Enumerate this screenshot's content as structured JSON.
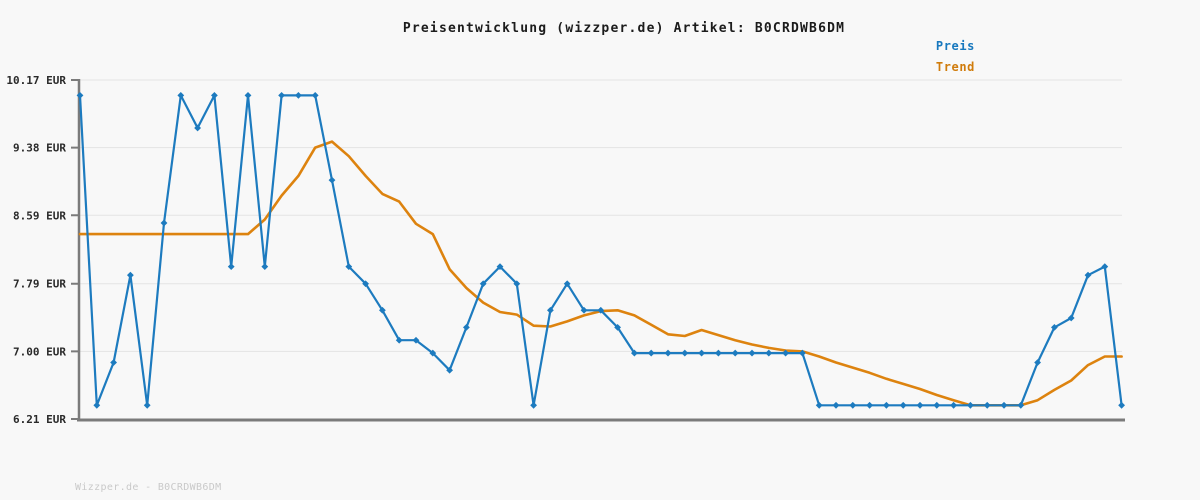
{
  "title": "Preisentwicklung (wizzper.de) Artikel: B0CRDWB6DM",
  "article_id": "B0CRDWB6DM",
  "legend": {
    "preis": {
      "label": "Preis",
      "color": "#1d7bbf"
    },
    "trend": {
      "label": "Trend",
      "color": "#dd830f"
    }
  },
  "footer": {
    "watermark": "Wizzper.de - B0CRDWB6DM"
  },
  "chart_data": {
    "type": "line",
    "title": "Preisentwicklung (wizzper.de) Artikel: B0CRDWB6DM",
    "currency": "EUR",
    "xlabel": "",
    "ylabel": "EUR",
    "x_labels_visible": false,
    "x_count": 63,
    "ylim": [
      6.21,
      10.17
    ],
    "grid": "horizontal",
    "legend_position": "top-right",
    "y_ticks": [
      {
        "value": 10.17,
        "label": "10.17 EUR"
      },
      {
        "value": 9.38,
        "label": "9.38 EUR"
      },
      {
        "value": 8.59,
        "label": "8.59 EUR"
      },
      {
        "value": 7.79,
        "label": "7.79 EUR"
      },
      {
        "value": 7.0,
        "label": "7.00 EUR"
      },
      {
        "value": 6.21,
        "label": "6.21 EUR"
      }
    ],
    "series": [
      {
        "name": "Preis",
        "color": "#1d7bbf",
        "marker": "diamond",
        "line_width": 2.2,
        "values": [
          9.99,
          6.37,
          6.87,
          7.89,
          6.37,
          8.5,
          9.99,
          9.61,
          9.99,
          7.99,
          9.99,
          7.99,
          9.99,
          9.99,
          9.99,
          9.0,
          7.99,
          7.79,
          7.48,
          7.13,
          7.13,
          6.98,
          6.78,
          7.28,
          7.79,
          7.99,
          7.79,
          6.37,
          7.48,
          7.79,
          7.48,
          7.48,
          7.28,
          6.98,
          6.98,
          6.98,
          6.98,
          6.98,
          6.98,
          6.98,
          6.98,
          6.98,
          6.98,
          6.98,
          6.37,
          6.37,
          6.37,
          6.37,
          6.37,
          6.37,
          6.37,
          6.37,
          6.37,
          6.37,
          6.37,
          6.37,
          6.37,
          6.87,
          7.28,
          7.39,
          7.89,
          7.99,
          6.37
        ]
      },
      {
        "name": "Trend",
        "color": "#dd830f",
        "marker": "none",
        "line_width": 2.6,
        "values": [
          8.37,
          8.37,
          8.37,
          8.37,
          8.37,
          8.37,
          8.37,
          8.37,
          8.37,
          8.37,
          8.37,
          8.54,
          8.82,
          9.05,
          9.38,
          9.45,
          9.28,
          9.05,
          8.84,
          8.75,
          8.49,
          8.37,
          7.96,
          7.74,
          7.57,
          7.46,
          7.43,
          7.3,
          7.29,
          7.35,
          7.42,
          7.47,
          7.48,
          7.42,
          7.31,
          7.2,
          7.18,
          7.25,
          7.19,
          7.13,
          7.08,
          7.04,
          7.01,
          7.0,
          6.94,
          6.87,
          6.81,
          6.75,
          6.68,
          6.62,
          6.56,
          6.49,
          6.43,
          6.37,
          6.37,
          6.37,
          6.37,
          6.43,
          6.55,
          6.66,
          6.84,
          6.94,
          6.94
        ]
      }
    ]
  },
  "colors": {
    "background": "#f8f8f8",
    "gridline": "#e4e4e4",
    "axis": "#7b7b7b",
    "tick_label": "#2a2a2a",
    "title": "#1c1c1c",
    "watermark": "#c9c9c9"
  }
}
